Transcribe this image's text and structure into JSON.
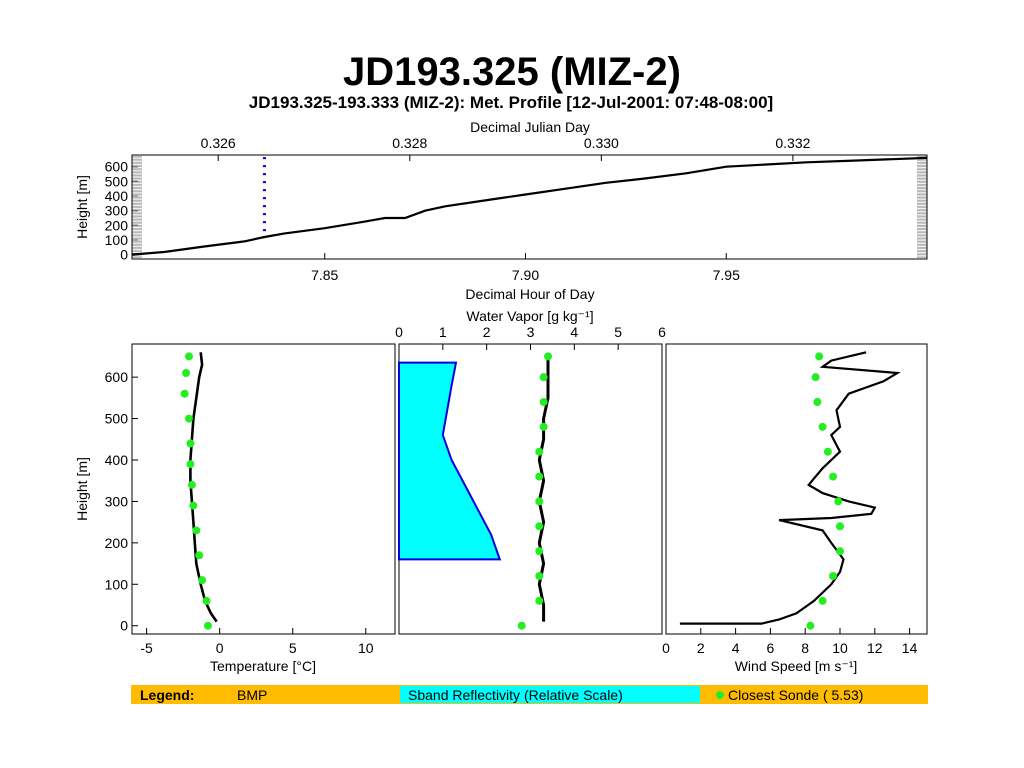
{
  "slide_title": "JD193.325 (MIZ-2)",
  "colors": {
    "sonde": "#22ee22",
    "bmp": "#000000",
    "reflectivity_fill": "#00ffff",
    "reflectivity_edge": "#0000dd",
    "legend_bar": "#ffbb00",
    "marker": "#0000cc"
  },
  "legend": {
    "label": "Legend:",
    "bmp": "BMP",
    "sband": "Sband Reflectivity (Relative Scale)",
    "sonde": "Closest Sonde ( 5.53)"
  },
  "chart_data": [
    {
      "id": "height-time",
      "type": "line",
      "title": "JD193.325-193.333 (MIZ-2): Met. Profile [12-Jul-2001: 07:48-08:00]",
      "top_axis_label": "Decimal Julian Day",
      "top_ticks": [
        "0.326",
        "0.328",
        "0.330",
        "0.332"
      ],
      "top_tick_values": [
        0.326,
        0.328,
        0.33,
        0.332
      ],
      "top_range": [
        0.3251,
        0.3334
      ],
      "xlabel": "Decimal Hour of Day",
      "x_ticks": [
        "7.85",
        "7.90",
        "7.95"
      ],
      "x_tick_values": [
        7.85,
        7.9,
        7.95
      ],
      "xlim": [
        7.802,
        8.0
      ],
      "ylabel": "Height [m]",
      "y_ticks": [
        "0",
        "100",
        "200",
        "300",
        "400",
        "500",
        "600"
      ],
      "y_tick_values": [
        0,
        100,
        200,
        300,
        400,
        500,
        600
      ],
      "ylim": [
        -30,
        680
      ],
      "series": [
        {
          "x": [
            7.802,
            7.81,
            7.82,
            7.83,
            7.835,
            7.84,
            7.85,
            7.86,
            7.865,
            7.87,
            7.875,
            7.88,
            7.89,
            7.9,
            7.91,
            7.92,
            7.93,
            7.94,
            7.95,
            7.96,
            7.97,
            7.98,
            7.99,
            8.0
          ],
          "y": [
            0,
            18,
            55,
            90,
            120,
            145,
            180,
            225,
            250,
            250,
            300,
            330,
            370,
            410,
            450,
            490,
            520,
            555,
            600,
            615,
            630,
            640,
            650,
            660
          ]
        }
      ],
      "marker": {
        "x": 7.835,
        "ylim": [
          160,
          680
        ]
      }
    },
    {
      "id": "temperature",
      "type": "line",
      "xlabel": "Temperature [°C]",
      "x_ticks": [
        "-5",
        "0",
        "5",
        "10"
      ],
      "x_tick_values": [
        -5,
        0,
        5,
        10
      ],
      "xlim": [
        -6,
        12
      ],
      "ylabel": "Height [m]",
      "y_ticks": [
        "0",
        "100",
        "200",
        "300",
        "400",
        "500",
        "600"
      ],
      "y_tick_values": [
        0,
        100,
        200,
        300,
        400,
        500,
        600
      ],
      "ylim": [
        -20,
        680
      ],
      "bmp": {
        "height": [
          10,
          30,
          60,
          100,
          150,
          200,
          250,
          300,
          350,
          400,
          450,
          500,
          550,
          600,
          630,
          660
        ],
        "value": [
          -0.2,
          -0.6,
          -1.0,
          -1.3,
          -1.6,
          -1.7,
          -1.8,
          -1.9,
          -2.0,
          -2.0,
          -1.9,
          -1.8,
          -1.6,
          -1.4,
          -1.2,
          -1.3
        ]
      },
      "sonde": {
        "height": [
          0,
          60,
          110,
          170,
          230,
          290,
          340,
          390,
          440,
          500,
          560,
          610,
          650
        ],
        "value": [
          -0.8,
          -0.9,
          -1.2,
          -1.4,
          -1.6,
          -1.8,
          -1.9,
          -2.0,
          -2.0,
          -2.1,
          -2.4,
          -2.3,
          -2.1
        ]
      }
    },
    {
      "id": "water-vapor",
      "type": "line",
      "top_axis_label": "Water Vapor [g kg⁻¹]",
      "top_ticks": [
        "0",
        "1",
        "2",
        "3",
        "4",
        "5",
        "6"
      ],
      "top_tick_values": [
        0,
        1,
        2,
        3,
        4,
        5,
        6
      ],
      "xlim": [
        0,
        6
      ],
      "ylim": [
        -20,
        680
      ],
      "bmp": {
        "height": [
          10,
          50,
          100,
          150,
          200,
          250,
          300,
          350,
          400,
          450,
          500,
          550,
          600,
          650
        ],
        "value": [
          3.3,
          3.3,
          3.2,
          3.3,
          3.2,
          3.3,
          3.2,
          3.3,
          3.2,
          3.3,
          3.3,
          3.4,
          3.4,
          3.4
        ]
      },
      "sonde": {
        "height": [
          0,
          60,
          120,
          180,
          240,
          300,
          360,
          420,
          480,
          540,
          600,
          650
        ],
        "value": [
          2.8,
          3.2,
          3.2,
          3.2,
          3.2,
          3.2,
          3.2,
          3.2,
          3.3,
          3.3,
          3.3,
          3.4
        ]
      },
      "reflectivity": {
        "height": [
          160,
          220,
          280,
          340,
          400,
          460,
          520,
          580,
          635
        ],
        "value": [
          2.3,
          2.1,
          1.8,
          1.5,
          1.2,
          1.0,
          1.1,
          1.2,
          1.3
        ]
      }
    },
    {
      "id": "wind-speed",
      "type": "line",
      "xlabel": "Wind Speed [m s⁻¹]",
      "x_ticks": [
        "0",
        "2",
        "4",
        "6",
        "8",
        "10",
        "12",
        "14"
      ],
      "x_tick_values": [
        0,
        2,
        4,
        6,
        8,
        10,
        12,
        14
      ],
      "xlim": [
        0,
        15
      ],
      "ylim": [
        -20,
        680
      ],
      "bmp": {
        "height": [
          5,
          5,
          15,
          30,
          60,
          100,
          130,
          160,
          200,
          230,
          255,
          260,
          270,
          285,
          300,
          320,
          340,
          355,
          380,
          420,
          460,
          480,
          520,
          560,
          590,
          610,
          625,
          640,
          650,
          660
        ],
        "value": [
          0.8,
          5.5,
          6.5,
          7.5,
          8.5,
          9.5,
          10.0,
          10.2,
          9.5,
          9.0,
          6.5,
          9.5,
          11.8,
          12.0,
          10.5,
          9.0,
          8.2,
          8.5,
          9.0,
          10.0,
          9.5,
          10.0,
          9.8,
          10.5,
          12.5,
          13.3,
          9.0,
          9.5,
          10.5,
          11.5
        ]
      },
      "sonde": {
        "height": [
          0,
          60,
          120,
          180,
          240,
          300,
          360,
          420,
          480,
          540,
          600,
          650
        ],
        "value": [
          8.3,
          9.0,
          9.6,
          10.0,
          10.0,
          9.9,
          9.6,
          9.3,
          9.0,
          8.7,
          8.6,
          8.8
        ]
      }
    }
  ]
}
